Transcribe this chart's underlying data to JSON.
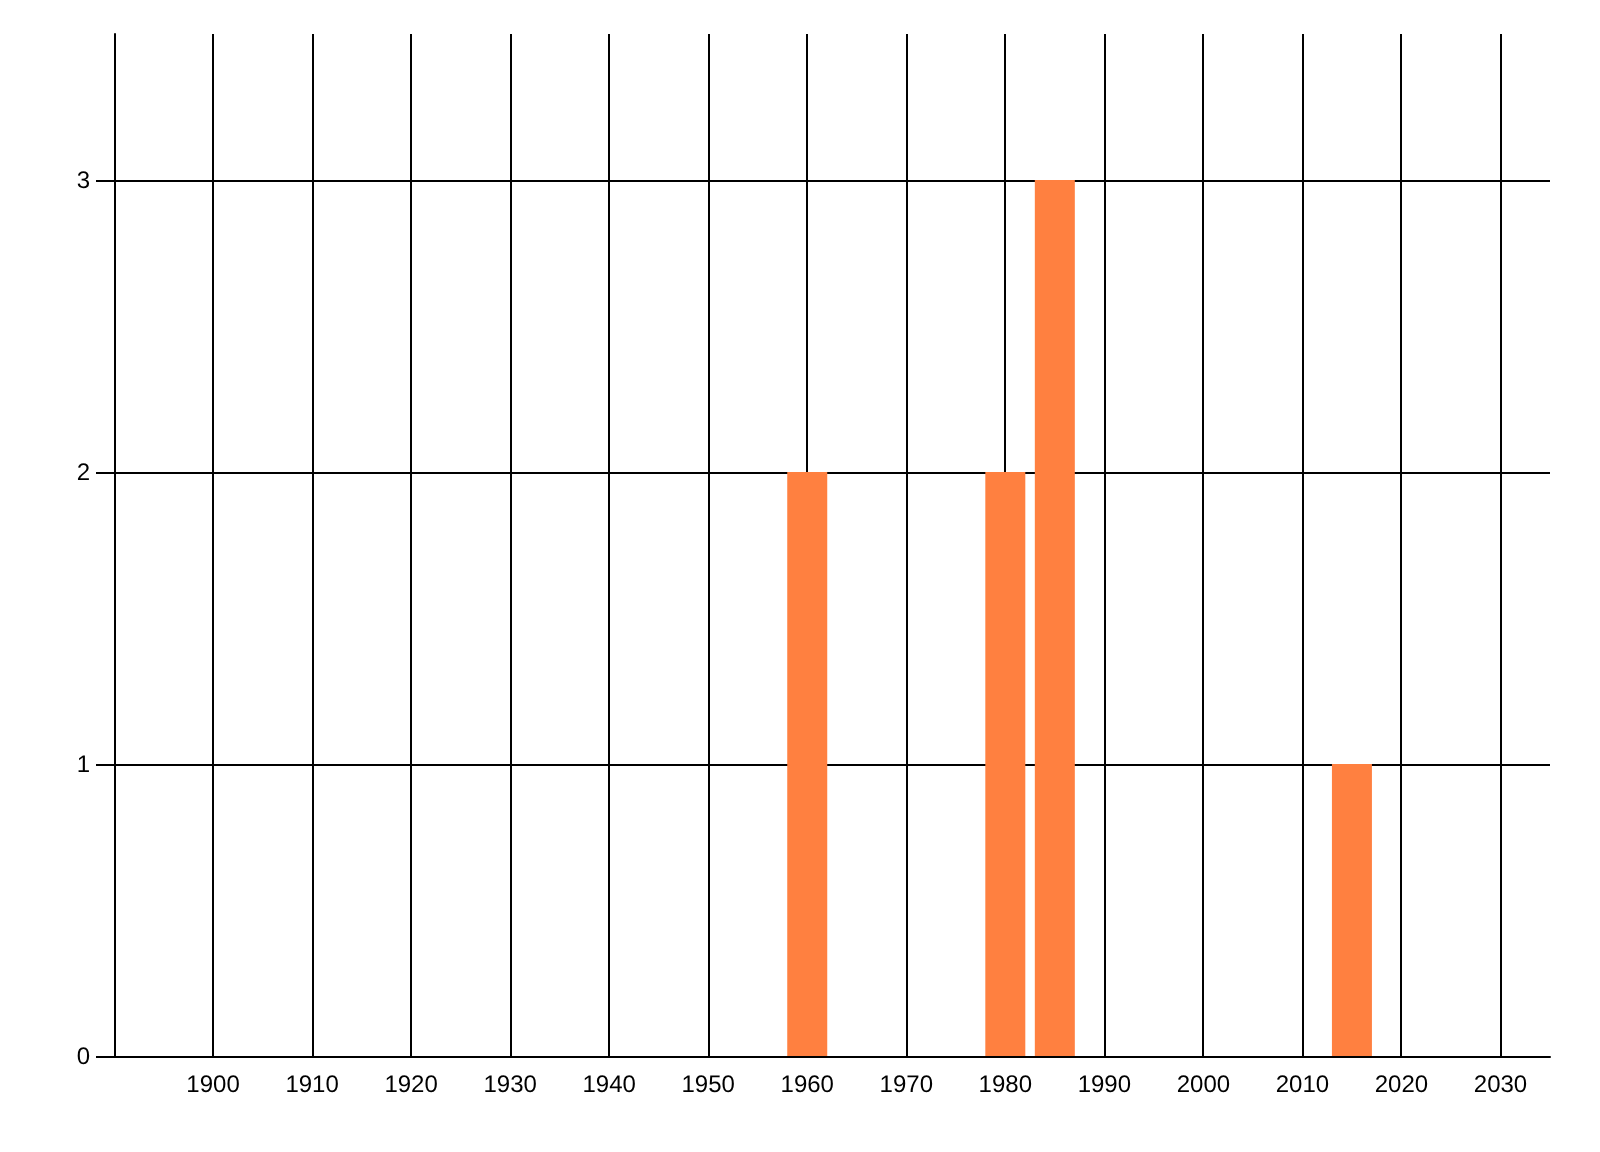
{
  "chart_data": {
    "type": "bar",
    "x": [
      1960,
      1980,
      1985,
      2015
    ],
    "values": [
      2,
      2,
      3,
      1
    ],
    "color": "#ff8040",
    "xlim": [
      1890,
      2035
    ],
    "xticks": [
      1900,
      1910,
      1920,
      1930,
      1940,
      1950,
      1960,
      1970,
      1980,
      1990,
      2000,
      2010,
      2020,
      2030
    ],
    "ylim": [
      0,
      3.5
    ],
    "yticks": [
      0,
      1,
      2,
      3
    ],
    "grid": true
  }
}
